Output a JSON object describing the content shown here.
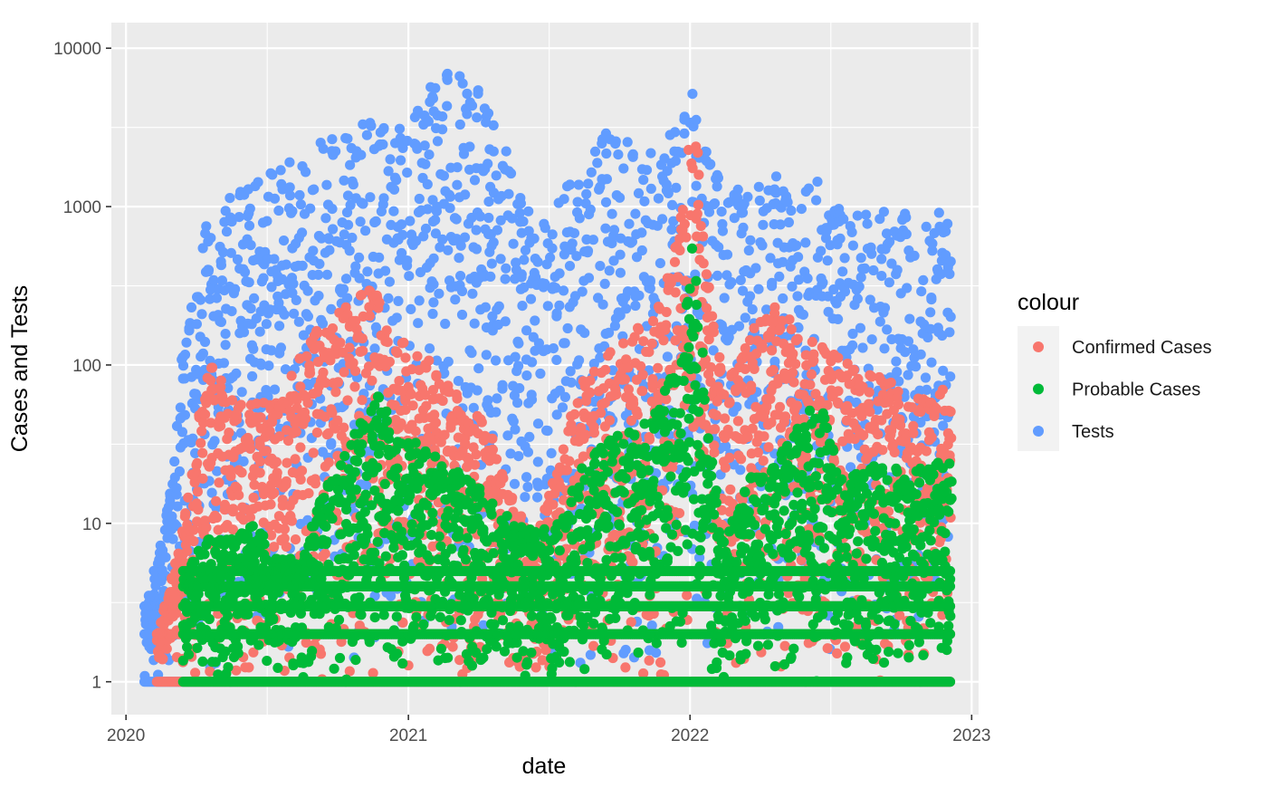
{
  "chart_data": {
    "type": "scatter",
    "xlabel": "date",
    "ylabel": "Cases and Tests",
    "x_axis": {
      "type": "date",
      "range": [
        "2019-12-13",
        "2023-01-10"
      ],
      "ticks": [
        {
          "value": "2020-01-01",
          "label": "2020"
        },
        {
          "value": "2021-01-01",
          "label": "2021"
        },
        {
          "value": "2022-01-01",
          "label": "2022"
        },
        {
          "value": "2023-01-01",
          "label": "2023"
        }
      ]
    },
    "y_axis": {
      "scale": "log10",
      "range": [
        0.62,
        14500
      ],
      "ticks": [
        {
          "value": 1,
          "label": "1"
        },
        {
          "value": 10,
          "label": "10"
        },
        {
          "value": 100,
          "label": "100"
        },
        {
          "value": 1000,
          "label": "1000"
        },
        {
          "value": 10000,
          "label": "10000"
        }
      ]
    },
    "grid": true,
    "legend": {
      "title": "colour",
      "placement": "right"
    },
    "series": [
      {
        "name": "Tests",
        "color": "#619CFF",
        "envelope": [
          [
            "2020-01-25",
            3
          ],
          [
            "2020-02-10",
            6
          ],
          [
            "2020-03-01",
            20
          ],
          [
            "2020-03-15",
            150
          ],
          [
            "2020-04-15",
            800
          ],
          [
            "2020-05-15",
            1200
          ],
          [
            "2020-06-15",
            1600
          ],
          [
            "2020-07-15",
            2000
          ],
          [
            "2020-08-15",
            1800
          ],
          [
            "2020-09-15",
            3000
          ],
          [
            "2020-10-15",
            3200
          ],
          [
            "2020-11-15",
            3500
          ],
          [
            "2020-12-15",
            3000
          ],
          [
            "2021-01-15",
            5000
          ],
          [
            "2021-02-15",
            7500
          ],
          [
            "2021-03-15",
            7000
          ],
          [
            "2021-04-15",
            4500
          ],
          [
            "2021-05-15",
            1800
          ],
          [
            "2021-06-15",
            800
          ],
          [
            "2021-07-15",
            1200
          ],
          [
            "2021-08-15",
            1800
          ],
          [
            "2021-09-15",
            3000
          ],
          [
            "2021-10-15",
            2500
          ],
          [
            "2021-11-15",
            2200
          ],
          [
            "2021-12-15",
            3500
          ],
          [
            "2022-01-05",
            5500
          ],
          [
            "2022-01-25",
            2500
          ],
          [
            "2022-02-15",
            1400
          ],
          [
            "2022-03-15",
            1300
          ],
          [
            "2022-04-15",
            1600
          ],
          [
            "2022-05-15",
            2000
          ],
          [
            "2022-06-15",
            1500
          ],
          [
            "2022-07-15",
            1100
          ],
          [
            "2022-08-15",
            900
          ],
          [
            "2022-09-15",
            1000
          ],
          [
            "2022-10-15",
            900
          ],
          [
            "2022-11-15",
            900
          ],
          [
            "2022-12-05",
            1000
          ]
        ]
      },
      {
        "name": "Confirmed Cases",
        "color": "#F8766D",
        "envelope": [
          [
            "2020-02-10",
            2
          ],
          [
            "2020-03-15",
            10
          ],
          [
            "2020-04-15",
            120
          ],
          [
            "2020-05-15",
            60
          ],
          [
            "2020-06-15",
            60
          ],
          [
            "2020-07-15",
            60
          ],
          [
            "2020-08-15",
            120
          ],
          [
            "2020-09-15",
            200
          ],
          [
            "2020-10-15",
            250
          ],
          [
            "2020-11-15",
            320
          ],
          [
            "2020-12-15",
            150
          ],
          [
            "2021-01-15",
            120
          ],
          [
            "2021-02-15",
            90
          ],
          [
            "2021-03-15",
            60
          ],
          [
            "2021-04-15",
            40
          ],
          [
            "2021-05-15",
            15
          ],
          [
            "2021-06-15",
            8
          ],
          [
            "2021-07-15",
            30
          ],
          [
            "2021-08-15",
            80
          ],
          [
            "2021-09-15",
            120
          ],
          [
            "2021-10-15",
            150
          ],
          [
            "2021-11-15",
            250
          ],
          [
            "2021-12-15",
            600
          ],
          [
            "2022-01-05",
            4500
          ],
          [
            "2022-01-25",
            300
          ],
          [
            "2022-02-15",
            80
          ],
          [
            "2022-03-15",
            150
          ],
          [
            "2022-04-15",
            250
          ],
          [
            "2022-05-15",
            200
          ],
          [
            "2022-06-15",
            150
          ],
          [
            "2022-07-15",
            120
          ],
          [
            "2022-08-15",
            100
          ],
          [
            "2022-09-15",
            80
          ],
          [
            "2022-10-15",
            60
          ],
          [
            "2022-11-15",
            70
          ],
          [
            "2022-12-05",
            70
          ]
        ]
      },
      {
        "name": "Probable Cases",
        "color": "#00BA38",
        "envelope": [
          [
            "2020-03-15",
            5
          ],
          [
            "2020-04-15",
            8
          ],
          [
            "2020-05-15",
            8
          ],
          [
            "2020-06-15",
            10
          ],
          [
            "2020-07-15",
            6
          ],
          [
            "2020-08-15",
            6
          ],
          [
            "2020-09-15",
            20
          ],
          [
            "2020-10-15",
            30
          ],
          [
            "2020-11-15",
            70
          ],
          [
            "2020-12-15",
            50
          ],
          [
            "2021-01-15",
            30
          ],
          [
            "2021-02-15",
            25
          ],
          [
            "2021-03-15",
            20
          ],
          [
            "2021-04-15",
            15
          ],
          [
            "2021-05-15",
            10
          ],
          [
            "2021-06-15",
            9
          ],
          [
            "2021-07-15",
            10
          ],
          [
            "2021-08-15",
            25
          ],
          [
            "2021-09-15",
            35
          ],
          [
            "2021-10-15",
            40
          ],
          [
            "2021-11-15",
            50
          ],
          [
            "2021-12-15",
            120
          ],
          [
            "2022-01-05",
            700
          ],
          [
            "2022-01-25",
            30
          ],
          [
            "2022-02-15",
            8
          ],
          [
            "2022-03-15",
            20
          ],
          [
            "2022-04-15",
            22
          ],
          [
            "2022-05-15",
            40
          ],
          [
            "2022-06-15",
            65
          ],
          [
            "2022-07-15",
            20
          ],
          [
            "2022-08-15",
            22
          ],
          [
            "2022-09-15",
            25
          ],
          [
            "2022-10-15",
            22
          ],
          [
            "2022-11-15",
            25
          ],
          [
            "2022-12-05",
            25
          ]
        ],
        "floor_levels": [
          1,
          2,
          3,
          4,
          5
        ]
      }
    ]
  }
}
